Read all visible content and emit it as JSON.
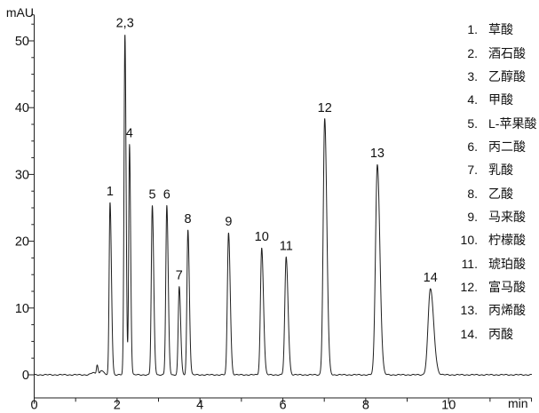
{
  "chart_data": {
    "type": "line",
    "title": "",
    "ylabel": "mAU",
    "xlabel": "min",
    "xlim": [
      0,
      12
    ],
    "ylim": [
      -3.6,
      53.9
    ],
    "x_major_ticks": [
      0,
      2,
      4,
      6,
      8,
      10
    ],
    "x_minor_step": 1,
    "y_major_ticks": [
      0,
      10,
      20,
      30,
      40,
      50
    ],
    "y_minor_step": 2.5,
    "grid": "off",
    "legend_position": "right",
    "series_color": "#1f1f1f",
    "peaks": [
      {
        "label": "1",
        "compound": "草酸",
        "rt_min": 1.83,
        "height_mAU": 25.8,
        "sigma_l": 0.021,
        "sigma_r": 0.034
      },
      {
        "label": "2,3",
        "compound": "酒石酸+乙醇酸",
        "rt_min": 2.19,
        "height_mAU": 51.0,
        "sigma_l": 0.022,
        "sigma_r": 0.027
      },
      {
        "label": "4",
        "compound": "甲酸",
        "rt_min": 2.3,
        "height_mAU": 34.5,
        "sigma_l": 0.019,
        "sigma_r": 0.027
      },
      {
        "label": "5",
        "compound": "L-苹果酸",
        "rt_min": 2.85,
        "height_mAU": 25.3,
        "sigma_l": 0.024,
        "sigma_r": 0.034
      },
      {
        "label": "6",
        "compound": "丙二酸",
        "rt_min": 3.2,
        "height_mAU": 25.3,
        "sigma_l": 0.024,
        "sigma_r": 0.034
      },
      {
        "label": "7",
        "compound": "乳酸",
        "rt_min": 3.5,
        "height_mAU": 13.2,
        "sigma_l": 0.024,
        "sigma_r": 0.034
      },
      {
        "label": "8",
        "compound": "乙酸",
        "rt_min": 3.71,
        "height_mAU": 21.7,
        "sigma_l": 0.024,
        "sigma_r": 0.034
      },
      {
        "label": "9",
        "compound": "马来酸",
        "rt_min": 4.69,
        "height_mAU": 21.3,
        "sigma_l": 0.028,
        "sigma_r": 0.04
      },
      {
        "label": "10",
        "compound": "柠檬酸",
        "rt_min": 5.49,
        "height_mAU": 19.0,
        "sigma_l": 0.03,
        "sigma_r": 0.043
      },
      {
        "label": "11",
        "compound": "琥珀酸",
        "rt_min": 6.08,
        "height_mAU": 17.6,
        "sigma_l": 0.032,
        "sigma_r": 0.046
      },
      {
        "label": "12",
        "compound": "富马酸",
        "rt_min": 7.01,
        "height_mAU": 38.3,
        "sigma_l": 0.036,
        "sigma_r": 0.052
      },
      {
        "label": "13",
        "compound": "丙烯酸",
        "rt_min": 8.28,
        "height_mAU": 31.5,
        "sigma_l": 0.044,
        "sigma_r": 0.062
      },
      {
        "label": "14",
        "compound": "丙酸",
        "rt_min": 9.56,
        "height_mAU": 12.9,
        "sigma_l": 0.055,
        "sigma_r": 0.08
      }
    ],
    "baseline_artifacts": [
      {
        "rt_min": 1.42,
        "height_mAU": 0.3,
        "sigma_l": 0.05,
        "sigma_r": 0.05
      },
      {
        "rt_min": 1.52,
        "height_mAU": 1.5,
        "sigma_l": 0.018,
        "sigma_r": 0.022
      },
      {
        "rt_min": 1.62,
        "height_mAU": 0.7,
        "sigma_l": 0.03,
        "sigma_r": 0.05
      }
    ]
  },
  "legend": {
    "items": [
      {
        "number": "1.",
        "name": "草酸"
      },
      {
        "number": "2.",
        "name": "酒石酸"
      },
      {
        "number": "3.",
        "name": "乙醇酸"
      },
      {
        "number": "4.",
        "name": "甲酸"
      },
      {
        "number": "5.",
        "name": "L-苹果酸"
      },
      {
        "number": "6.",
        "name": "丙二酸"
      },
      {
        "number": "7.",
        "name": "乳酸"
      },
      {
        "number": "8.",
        "name": "乙酸"
      },
      {
        "number": "9.",
        "name": "马来酸"
      },
      {
        "number": "10.",
        "name": "柠檬酸"
      },
      {
        "number": "11.",
        "name": "琥珀酸"
      },
      {
        "number": "12.",
        "name": "富马酸"
      },
      {
        "number": "13.",
        "name": "丙烯酸"
      },
      {
        "number": "14.",
        "name": "丙酸"
      }
    ]
  }
}
